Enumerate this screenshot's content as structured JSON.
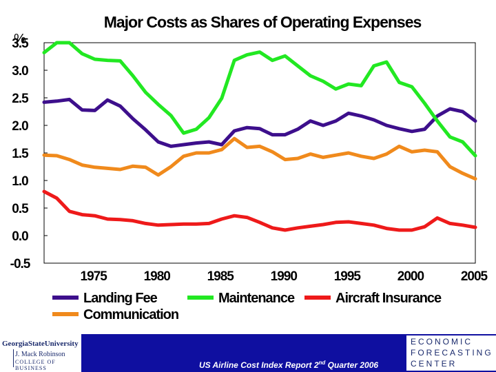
{
  "chart_data": {
    "type": "line",
    "title": "Major Costs as Shares of Operating Expenses",
    "ylabel": "%",
    "xlabel": "",
    "xlim": [
      1971,
      2005
    ],
    "ylim": [
      -0.5,
      3.5
    ],
    "yticks": [
      "3.5",
      "3.0",
      "2.5",
      "2.0",
      "1.5",
      "1.0",
      "0.5",
      "0.0",
      "-0.5"
    ],
    "ytick_values": [
      3.5,
      3.0,
      2.5,
      2.0,
      1.5,
      1.0,
      0.5,
      0.0,
      -0.5
    ],
    "xticks": [
      "1975",
      "1980",
      "1985",
      "1990",
      "1995",
      "2000",
      "2005"
    ],
    "xtick_values": [
      1975,
      1980,
      1985,
      1990,
      1995,
      2000,
      2005
    ],
    "grid": false,
    "legend_position": "bottom",
    "x": [
      1971,
      1972,
      1973,
      1974,
      1975,
      1976,
      1977,
      1978,
      1979,
      1980,
      1981,
      1982,
      1983,
      1984,
      1985,
      1986,
      1987,
      1988,
      1989,
      1990,
      1991,
      1992,
      1993,
      1994,
      1995,
      1996,
      1997,
      1998,
      1999,
      2000,
      2001,
      2002,
      2003,
      2004,
      2005
    ],
    "series": [
      {
        "name": "Landing Fee",
        "color": "#3d0f8c",
        "values": [
          2.42,
          2.44,
          2.47,
          2.28,
          2.27,
          2.46,
          2.35,
          2.12,
          1.92,
          1.7,
          1.62,
          1.65,
          1.68,
          1.7,
          1.65,
          1.9,
          1.96,
          1.94,
          1.83,
          1.83,
          1.93,
          2.08,
          2.0,
          2.08,
          2.22,
          2.17,
          2.1,
          2.0,
          1.94,
          1.89,
          1.93,
          2.17,
          2.3,
          2.25,
          2.08
        ]
      },
      {
        "name": "Maintenance",
        "color": "#22e822",
        "values": [
          3.32,
          3.5,
          3.5,
          3.3,
          3.2,
          3.18,
          3.17,
          2.9,
          2.6,
          2.38,
          2.18,
          1.86,
          1.93,
          2.14,
          2.49,
          3.18,
          3.28,
          3.33,
          3.18,
          3.26,
          3.08,
          2.9,
          2.8,
          2.66,
          2.75,
          2.72,
          3.08,
          3.15,
          2.78,
          2.7,
          2.4,
          2.08,
          1.79,
          1.7,
          1.45
        ]
      },
      {
        "name": "Aircraft Insurance",
        "color": "#ee1a1a",
        "values": [
          0.8,
          0.68,
          0.44,
          0.38,
          0.36,
          0.3,
          0.29,
          0.27,
          0.22,
          0.19,
          0.2,
          0.21,
          0.21,
          0.22,
          0.3,
          0.36,
          0.33,
          0.24,
          0.14,
          0.1,
          0.14,
          0.17,
          0.2,
          0.24,
          0.25,
          0.22,
          0.19,
          0.13,
          0.1,
          0.1,
          0.16,
          0.32,
          0.22,
          0.19,
          0.15
        ]
      },
      {
        "name": "Communication",
        "color": "#f08a1c",
        "values": [
          1.46,
          1.45,
          1.38,
          1.28,
          1.24,
          1.22,
          1.2,
          1.26,
          1.24,
          1.1,
          1.25,
          1.44,
          1.5,
          1.5,
          1.56,
          1.76,
          1.6,
          1.62,
          1.52,
          1.38,
          1.4,
          1.48,
          1.42,
          1.46,
          1.5,
          1.44,
          1.4,
          1.48,
          1.62,
          1.52,
          1.55,
          1.52,
          1.25,
          1.13,
          1.03
        ]
      }
    ]
  },
  "footer": {
    "report_title": "US Airline Cost Index Report 2",
    "report_title_sup": "nd",
    "report_title_tail": " Quarter 2006",
    "left_logo": {
      "line1": "GeorgiaStateUniversity",
      "line2": "J. Mack Robinson",
      "line3": "COLLEGE OF BUSINESS"
    },
    "right_logo": {
      "line1": "ECONOMIC",
      "line2": "FORECASTING",
      "line3": "CENTER"
    }
  }
}
